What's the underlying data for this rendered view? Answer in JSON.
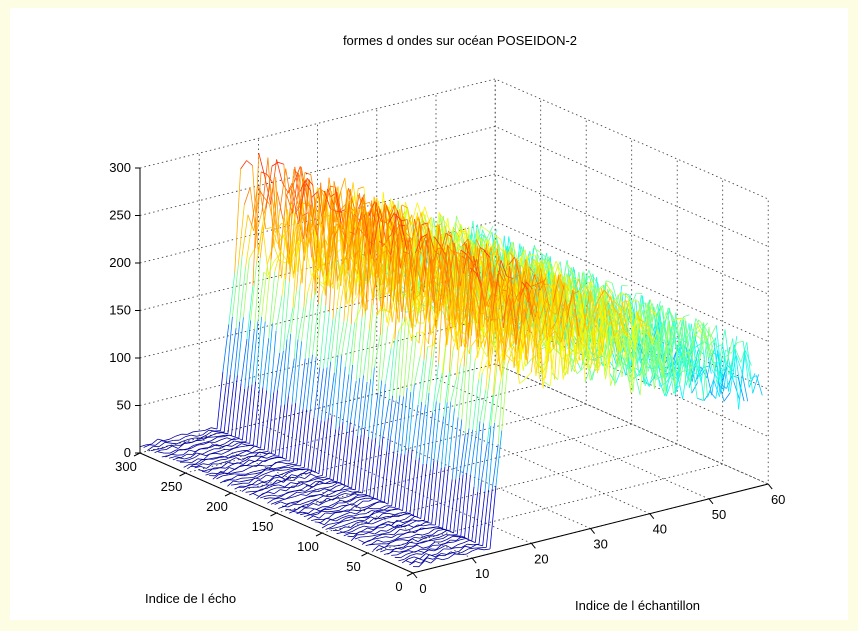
{
  "chart_data": {
    "type": "surface",
    "title": "formes d ondes sur océan POSEIDON-2",
    "xlabel": "Indice de l échantillon",
    "ylabel": "Indice de l écho",
    "zlabel": "",
    "x_range": [
      0,
      60
    ],
    "y_range": [
      0,
      300
    ],
    "z_range": [
      0,
      300
    ],
    "x_ticks": [
      0,
      10,
      20,
      30,
      40,
      50,
      60
    ],
    "y_ticks": [
      0,
      50,
      100,
      150,
      200,
      250,
      300
    ],
    "z_ticks": [
      0,
      50,
      100,
      150,
      200,
      250,
      300
    ],
    "grid": true,
    "colormap": [
      "#00008f",
      "#0000ff",
      "#00ffff",
      "#ffff00",
      "#ff8000",
      "#ff0000"
    ],
    "waveform_model": {
      "noise_floor": 5,
      "leading_edge_start_sample": 13,
      "leading_edge_end_sample": 17,
      "peak_amplitude": 235,
      "trailing_amplitude_at_max_sample": 110,
      "sample_count": 60,
      "echo_count": 300
    }
  }
}
